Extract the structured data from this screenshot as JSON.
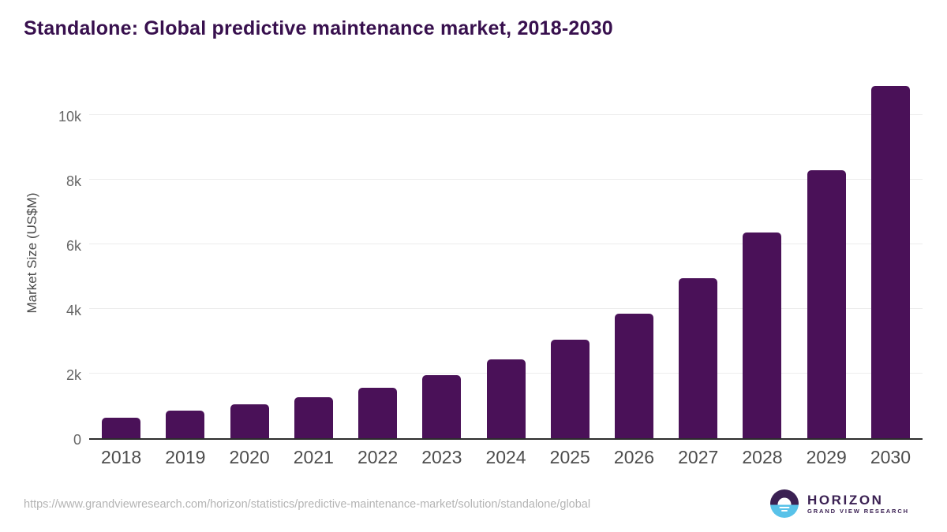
{
  "title": "Standalone: Global predictive maintenance market, 2018-2030",
  "chart_data": {
    "type": "bar",
    "title": "Standalone: Global predictive maintenance market, 2018-2030",
    "categories": [
      "2018",
      "2019",
      "2020",
      "2021",
      "2022",
      "2023",
      "2024",
      "2025",
      "2026",
      "2027",
      "2028",
      "2029",
      "2030"
    ],
    "values": [
      640,
      855,
      1045,
      1265,
      1570,
      1950,
      2430,
      3050,
      3850,
      4940,
      6360,
      8300,
      10900
    ],
    "xlabel": "",
    "ylabel": "Market Size (US$M)",
    "ylim": [
      0,
      11300
    ],
    "yticks": [
      {
        "value": 0,
        "label": "0"
      },
      {
        "value": 2000,
        "label": "2k"
      },
      {
        "value": 4000,
        "label": "4k"
      },
      {
        "value": 6000,
        "label": "6k"
      },
      {
        "value": 8000,
        "label": "8k"
      },
      {
        "value": 10000,
        "label": "10k"
      }
    ],
    "grid": "horizontal",
    "legend": "none",
    "bar_color": "#4a1158"
  },
  "colors": {
    "bar_color": "#4a1158",
    "title_color": "#38104e",
    "logo_purple": "#3b2153",
    "logo_blue": "#58c2e9"
  },
  "footer": {
    "source_url": "https://www.grandviewresearch.com/horizon/statistics/predictive-maintenance-market/solution/standalone/global",
    "logo": {
      "name": "HORIZON",
      "subtitle": "GRAND VIEW RESEARCH"
    }
  }
}
